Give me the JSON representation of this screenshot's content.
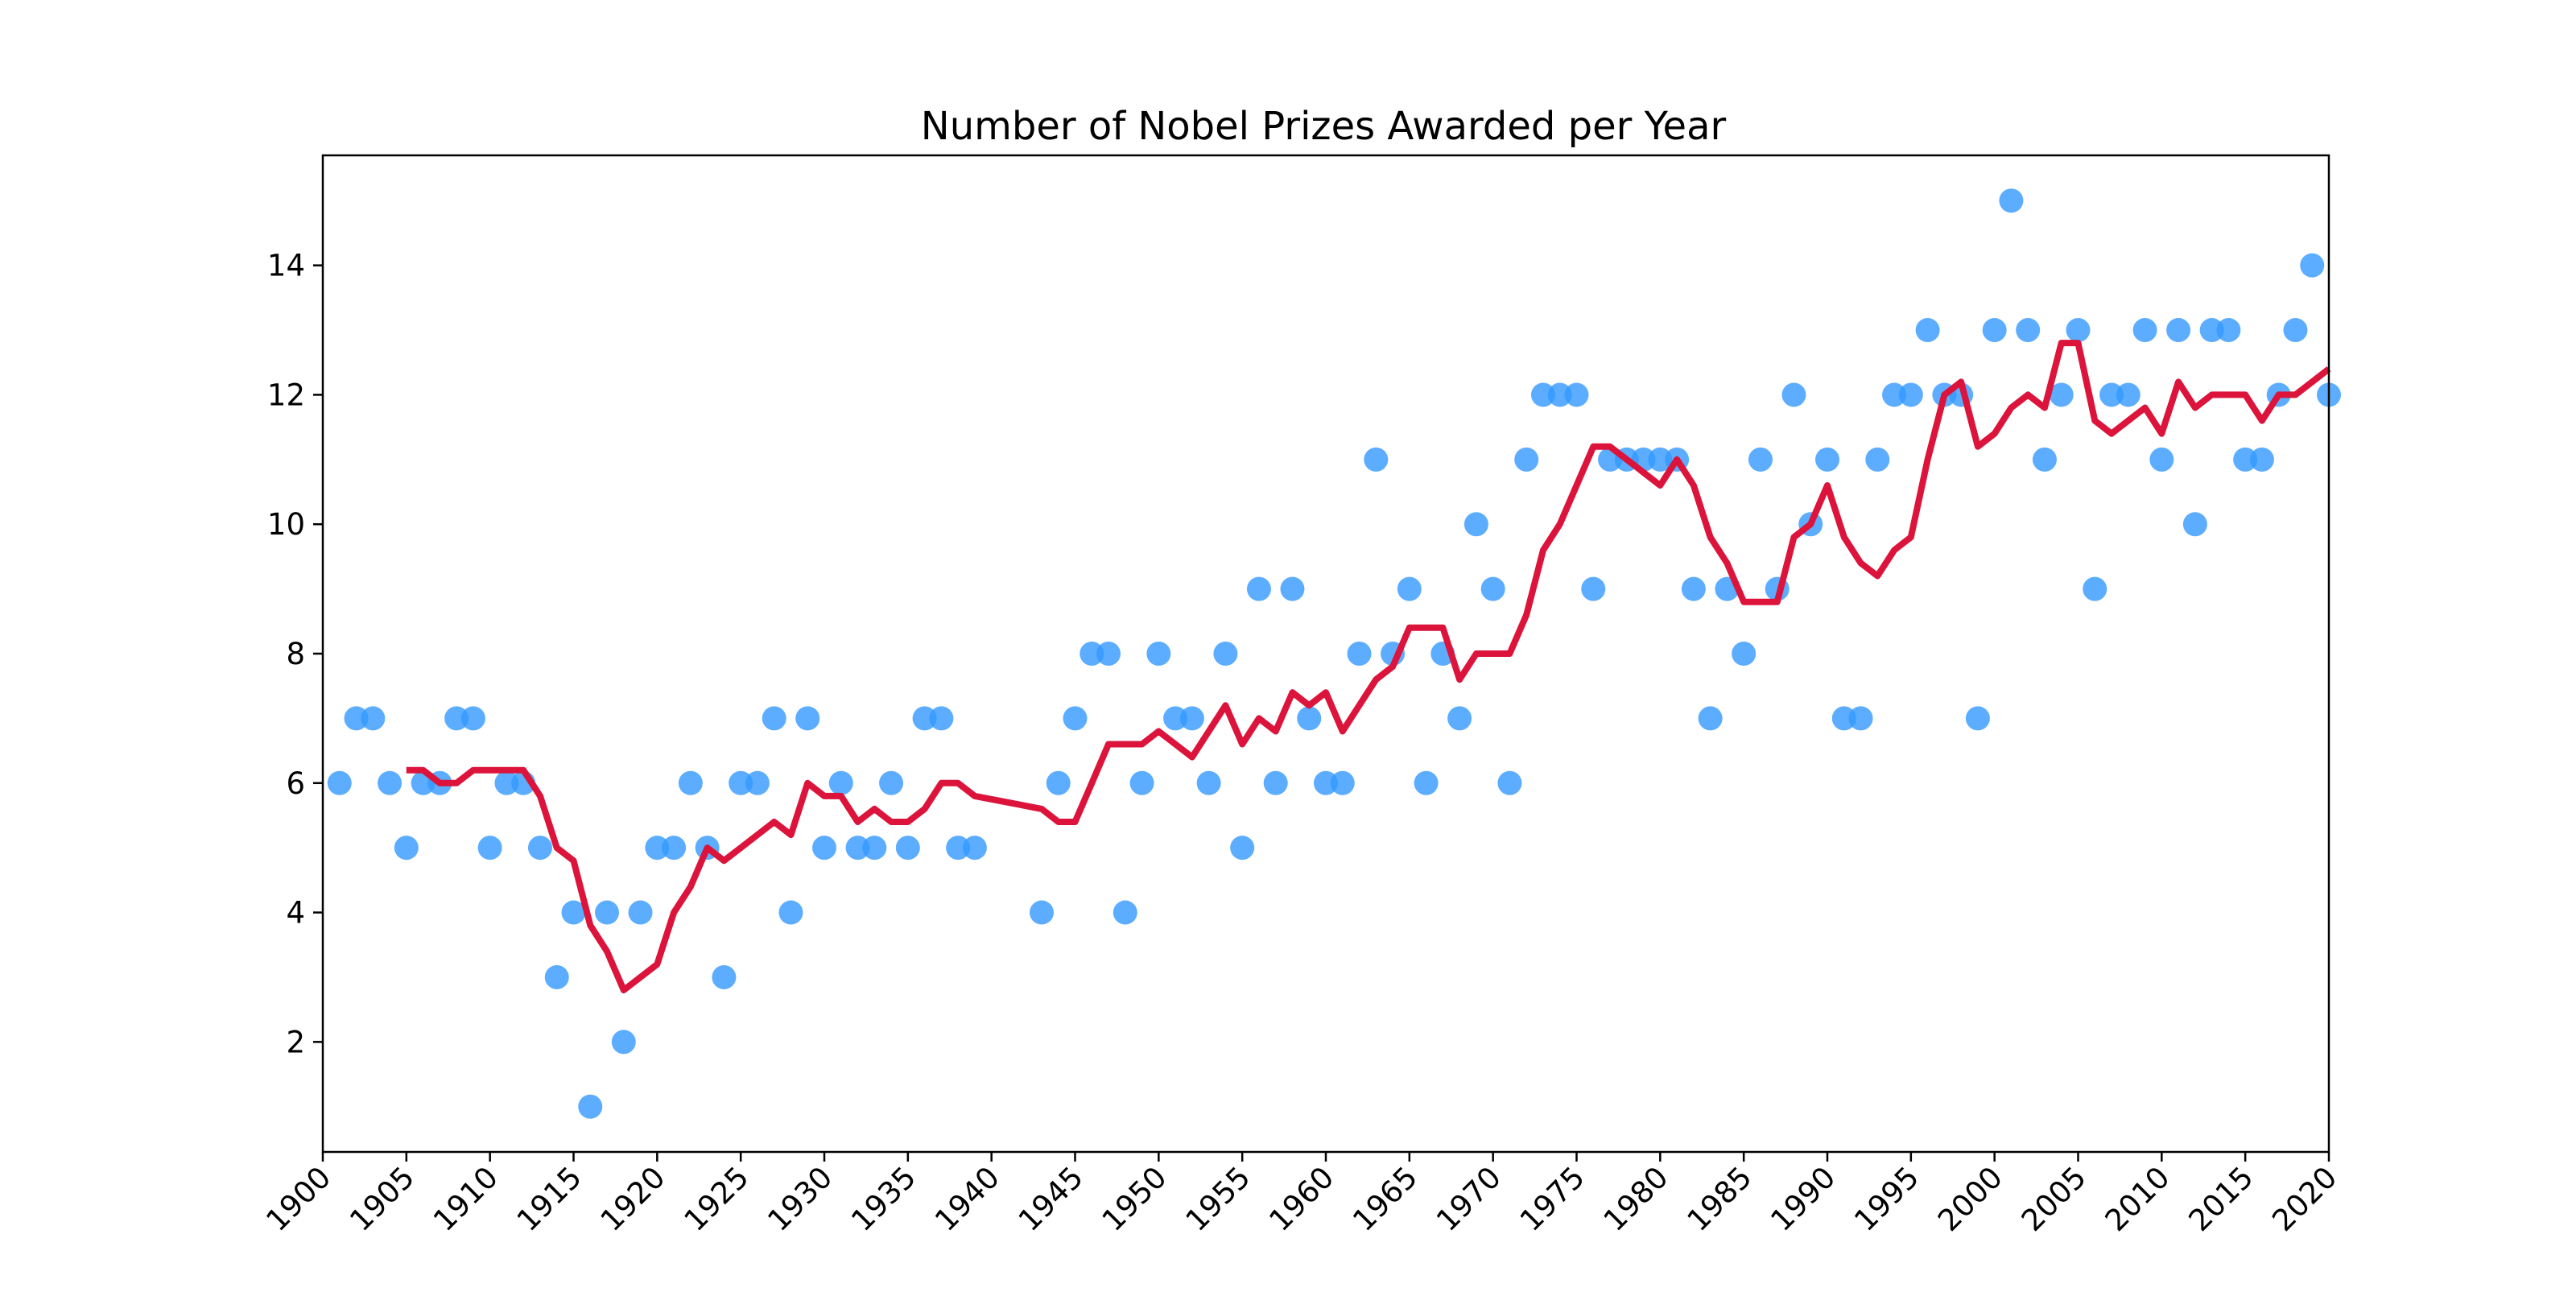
{
  "chart_data": {
    "type": "scatter",
    "title": "Number of Nobel Prizes Awarded per Year",
    "xlabel": "",
    "ylabel": "",
    "xlim": [
      1900,
      2020
    ],
    "ylim": [
      0.3,
      15.7
    ],
    "x_ticks": [
      1900,
      1905,
      1910,
      1915,
      1920,
      1925,
      1930,
      1935,
      1940,
      1945,
      1950,
      1955,
      1960,
      1965,
      1970,
      1975,
      1980,
      1985,
      1990,
      1995,
      2000,
      2005,
      2010,
      2015,
      2020
    ],
    "y_ticks": [
      2,
      4,
      6,
      8,
      10,
      12,
      14
    ],
    "grid": false,
    "legend": "none",
    "colors": {
      "points": "#3399ff",
      "line": "#dc143c",
      "axes": "#000000"
    },
    "series": [
      {
        "kind": "scatter",
        "points": [
          [
            1901,
            6
          ],
          [
            1902,
            7
          ],
          [
            1903,
            7
          ],
          [
            1904,
            6
          ],
          [
            1905,
            5
          ],
          [
            1906,
            6
          ],
          [
            1907,
            6
          ],
          [
            1908,
            7
          ],
          [
            1909,
            7
          ],
          [
            1910,
            5
          ],
          [
            1911,
            6
          ],
          [
            1912,
            6
          ],
          [
            1913,
            5
          ],
          [
            1914,
            3
          ],
          [
            1915,
            4
          ],
          [
            1916,
            1
          ],
          [
            1917,
            4
          ],
          [
            1918,
            2
          ],
          [
            1919,
            4
          ],
          [
            1920,
            5
          ],
          [
            1921,
            5
          ],
          [
            1922,
            6
          ],
          [
            1923,
            5
          ],
          [
            1924,
            3
          ],
          [
            1925,
            6
          ],
          [
            1926,
            6
          ],
          [
            1927,
            7
          ],
          [
            1928,
            4
          ],
          [
            1929,
            7
          ],
          [
            1930,
            5
          ],
          [
            1931,
            6
          ],
          [
            1932,
            5
          ],
          [
            1933,
            5
          ],
          [
            1934,
            6
          ],
          [
            1935,
            5
          ],
          [
            1936,
            7
          ],
          [
            1937,
            7
          ],
          [
            1938,
            5
          ],
          [
            1939,
            5
          ],
          [
            1943,
            4
          ],
          [
            1944,
            6
          ],
          [
            1945,
            7
          ],
          [
            1946,
            8
          ],
          [
            1947,
            8
          ],
          [
            1948,
            4
          ],
          [
            1949,
            6
          ],
          [
            1950,
            8
          ],
          [
            1951,
            7
          ],
          [
            1952,
            7
          ],
          [
            1953,
            6
          ],
          [
            1954,
            8
          ],
          [
            1955,
            5
          ],
          [
            1956,
            9
          ],
          [
            1957,
            6
          ],
          [
            1958,
            9
          ],
          [
            1959,
            7
          ],
          [
            1960,
            6
          ],
          [
            1961,
            6
          ],
          [
            1962,
            8
          ],
          [
            1963,
            11
          ],
          [
            1964,
            8
          ],
          [
            1965,
            9
          ],
          [
            1966,
            6
          ],
          [
            1967,
            8
          ],
          [
            1968,
            7
          ],
          [
            1969,
            10
          ],
          [
            1970,
            9
          ],
          [
            1971,
            6
          ],
          [
            1972,
            11
          ],
          [
            1973,
            12
          ],
          [
            1974,
            12
          ],
          [
            1975,
            12
          ],
          [
            1976,
            9
          ],
          [
            1977,
            11
          ],
          [
            1978,
            11
          ],
          [
            1979,
            11
          ],
          [
            1980,
            11
          ],
          [
            1981,
            11
          ],
          [
            1982,
            9
          ],
          [
            1983,
            7
          ],
          [
            1984,
            9
          ],
          [
            1985,
            8
          ],
          [
            1986,
            11
          ],
          [
            1987,
            9
          ],
          [
            1988,
            12
          ],
          [
            1989,
            10
          ],
          [
            1990,
            11
          ],
          [
            1991,
            7
          ],
          [
            1992,
            7
          ],
          [
            1993,
            11
          ],
          [
            1994,
            12
          ],
          [
            1995,
            12
          ],
          [
            1996,
            13
          ],
          [
            1997,
            12
          ],
          [
            1998,
            12
          ],
          [
            1999,
            7
          ],
          [
            2000,
            13
          ],
          [
            2001,
            15
          ],
          [
            2002,
            13
          ],
          [
            2003,
            11
          ],
          [
            2004,
            12
          ],
          [
            2005,
            13
          ],
          [
            2006,
            9
          ],
          [
            2007,
            12
          ],
          [
            2008,
            12
          ],
          [
            2009,
            13
          ],
          [
            2010,
            11
          ],
          [
            2011,
            13
          ],
          [
            2012,
            10
          ],
          [
            2013,
            13
          ],
          [
            2014,
            13
          ],
          [
            2015,
            11
          ],
          [
            2016,
            11
          ],
          [
            2017,
            12
          ],
          [
            2018,
            13
          ],
          [
            2019,
            14
          ],
          [
            2020,
            12
          ]
        ]
      },
      {
        "kind": "line",
        "points": [
          [
            1905,
            6.2
          ],
          [
            1906,
            6.2
          ],
          [
            1907,
            6.0
          ],
          [
            1908,
            6.0
          ],
          [
            1909,
            6.2
          ],
          [
            1910,
            6.2
          ],
          [
            1911,
            6.2
          ],
          [
            1912,
            6.2
          ],
          [
            1913,
            5.8
          ],
          [
            1914,
            5.0
          ],
          [
            1915,
            4.8
          ],
          [
            1916,
            3.8
          ],
          [
            1917,
            3.4
          ],
          [
            1918,
            2.8
          ],
          [
            1919,
            3.0
          ],
          [
            1920,
            3.2
          ],
          [
            1921,
            4.0
          ],
          [
            1922,
            4.4
          ],
          [
            1923,
            5.0
          ],
          [
            1924,
            4.8
          ],
          [
            1925,
            5.0
          ],
          [
            1926,
            5.2
          ],
          [
            1927,
            5.4
          ],
          [
            1928,
            5.2
          ],
          [
            1929,
            6.0
          ],
          [
            1930,
            5.8
          ],
          [
            1931,
            5.8
          ],
          [
            1932,
            5.4
          ],
          [
            1933,
            5.6
          ],
          [
            1934,
            5.4
          ],
          [
            1935,
            5.4
          ],
          [
            1936,
            5.6
          ],
          [
            1937,
            6.0
          ],
          [
            1938,
            6.0
          ],
          [
            1939,
            5.8
          ],
          [
            1943,
            5.6
          ],
          [
            1944,
            5.4
          ],
          [
            1945,
            5.4
          ],
          [
            1946,
            6.0
          ],
          [
            1947,
            6.6
          ],
          [
            1948,
            6.6
          ],
          [
            1949,
            6.6
          ],
          [
            1950,
            6.8
          ],
          [
            1951,
            6.6
          ],
          [
            1952,
            6.4
          ],
          [
            1953,
            6.8
          ],
          [
            1954,
            7.2
          ],
          [
            1955,
            6.6
          ],
          [
            1956,
            7.0
          ],
          [
            1957,
            6.8
          ],
          [
            1958,
            7.4
          ],
          [
            1959,
            7.2
          ],
          [
            1960,
            7.4
          ],
          [
            1961,
            6.8
          ],
          [
            1962,
            7.2
          ],
          [
            1963,
            7.6
          ],
          [
            1964,
            7.8
          ],
          [
            1965,
            8.4
          ],
          [
            1966,
            8.4
          ],
          [
            1967,
            8.4
          ],
          [
            1968,
            7.6
          ],
          [
            1969,
            8.0
          ],
          [
            1970,
            8.0
          ],
          [
            1971,
            8.0
          ],
          [
            1972,
            8.6
          ],
          [
            1973,
            9.6
          ],
          [
            1974,
            10.0
          ],
          [
            1975,
            10.6
          ],
          [
            1976,
            11.2
          ],
          [
            1977,
            11.2
          ],
          [
            1978,
            11.0
          ],
          [
            1979,
            10.8
          ],
          [
            1980,
            10.6
          ],
          [
            1981,
            11.0
          ],
          [
            1982,
            10.6
          ],
          [
            1983,
            9.8
          ],
          [
            1984,
            9.4
          ],
          [
            1985,
            8.8
          ],
          [
            1986,
            8.8
          ],
          [
            1987,
            8.8
          ],
          [
            1988,
            9.8
          ],
          [
            1989,
            10.0
          ],
          [
            1990,
            10.6
          ],
          [
            1991,
            9.8
          ],
          [
            1992,
            9.4
          ],
          [
            1993,
            9.2
          ],
          [
            1994,
            9.6
          ],
          [
            1995,
            9.8
          ],
          [
            1996,
            11.0
          ],
          [
            1997,
            12.0
          ],
          [
            1998,
            12.2
          ],
          [
            1999,
            11.2
          ],
          [
            2000,
            11.4
          ],
          [
            2001,
            11.8
          ],
          [
            2002,
            12.0
          ],
          [
            2003,
            11.8
          ],
          [
            2004,
            12.8
          ],
          [
            2005,
            12.8
          ],
          [
            2006,
            11.6
          ],
          [
            2007,
            11.4
          ],
          [
            2008,
            11.6
          ],
          [
            2009,
            11.8
          ],
          [
            2010,
            11.4
          ],
          [
            2011,
            12.2
          ],
          [
            2012,
            11.8
          ],
          [
            2013,
            12.0
          ],
          [
            2014,
            12.0
          ],
          [
            2015,
            12.0
          ],
          [
            2016,
            11.6
          ],
          [
            2017,
            12.0
          ],
          [
            2018,
            12.0
          ],
          [
            2019,
            12.2
          ],
          [
            2020,
            12.4
          ]
        ]
      }
    ]
  }
}
